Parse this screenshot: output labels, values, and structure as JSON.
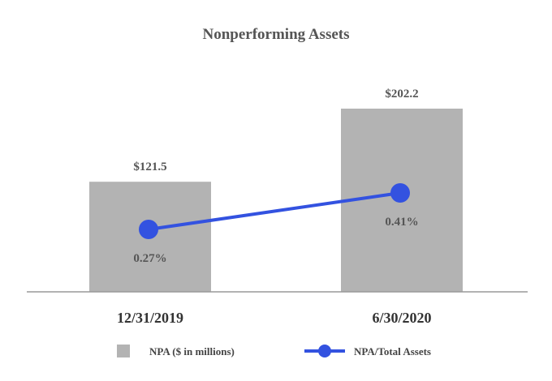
{
  "chart_data": {
    "type": "bar",
    "title": "Nonperforming Assets",
    "categories": [
      "12/31/2019",
      "6/30/2020"
    ],
    "series": [
      {
        "name": "NPA ($ in millions)",
        "type": "bar",
        "values": [
          121.5,
          202.2
        ],
        "labels": [
          "$121.5",
          "$202.2"
        ],
        "color": "#b3b3b3"
      },
      {
        "name": "NPA/Total Assets",
        "type": "line",
        "values": [
          0.27,
          0.41
        ],
        "labels": [
          "0.27%",
          "0.41%"
        ],
        "color": "#3352e0"
      }
    ],
    "legend": "bottom",
    "grid": false
  }
}
